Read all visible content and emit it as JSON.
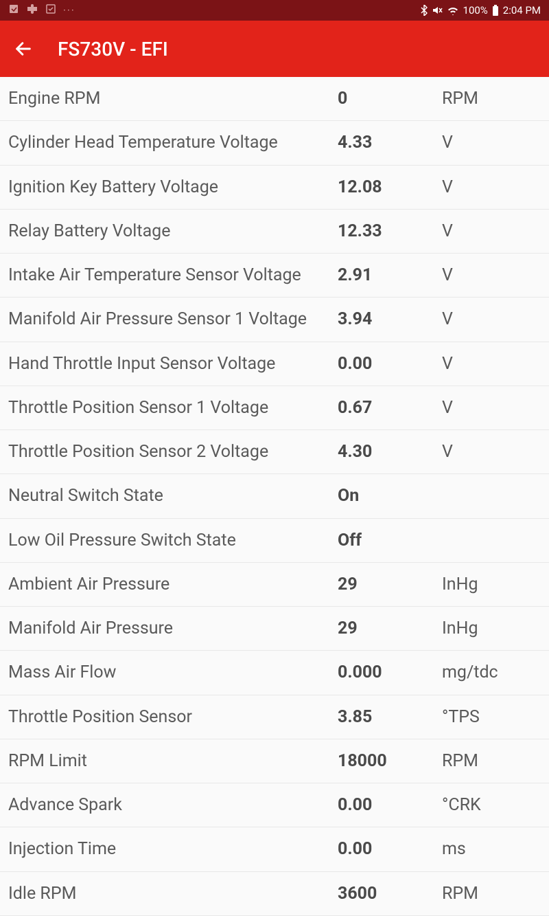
{
  "statusBar": {
    "battery": "100%",
    "time": "2:04 PM"
  },
  "header": {
    "title": "FS730V - EFI"
  },
  "readings": [
    {
      "label": "Engine RPM",
      "value": "0",
      "unit": "RPM"
    },
    {
      "label": "Cylinder Head Temperature Voltage",
      "value": "4.33",
      "unit": "V"
    },
    {
      "label": "Ignition Key Battery Voltage",
      "value": "12.08",
      "unit": "V"
    },
    {
      "label": "Relay Battery Voltage",
      "value": "12.33",
      "unit": "V"
    },
    {
      "label": "Intake Air Temperature Sensor Voltage",
      "value": "2.91",
      "unit": "V"
    },
    {
      "label": "Manifold Air Pressure Sensor 1 Voltage",
      "value": "3.94",
      "unit": "V"
    },
    {
      "label": "Hand Throttle Input Sensor Voltage",
      "value": "0.00",
      "unit": "V"
    },
    {
      "label": "Throttle Position Sensor 1 Voltage",
      "value": "0.67",
      "unit": "V"
    },
    {
      "label": "Throttle Position Sensor 2 Voltage",
      "value": "4.30",
      "unit": "V"
    },
    {
      "label": "Neutral Switch State",
      "value": "On",
      "unit": ""
    },
    {
      "label": "Low Oil Pressure Switch State",
      "value": "Off",
      "unit": ""
    },
    {
      "label": "Ambient Air Pressure",
      "value": "29",
      "unit": "InHg"
    },
    {
      "label": "Manifold Air Pressure",
      "value": "29",
      "unit": "InHg"
    },
    {
      "label": "Mass Air Flow",
      "value": "0.000",
      "unit": "mg/tdc"
    },
    {
      "label": "Throttle Position Sensor",
      "value": "3.85",
      "unit": "°TPS"
    },
    {
      "label": "RPM Limit",
      "value": "18000",
      "unit": "RPM"
    },
    {
      "label": "Advance Spark",
      "value": "0.00",
      "unit": "°CRK"
    },
    {
      "label": "Injection Time",
      "value": "0.00",
      "unit": "ms"
    },
    {
      "label": "Idle RPM",
      "value": "3600",
      "unit": "RPM"
    }
  ]
}
